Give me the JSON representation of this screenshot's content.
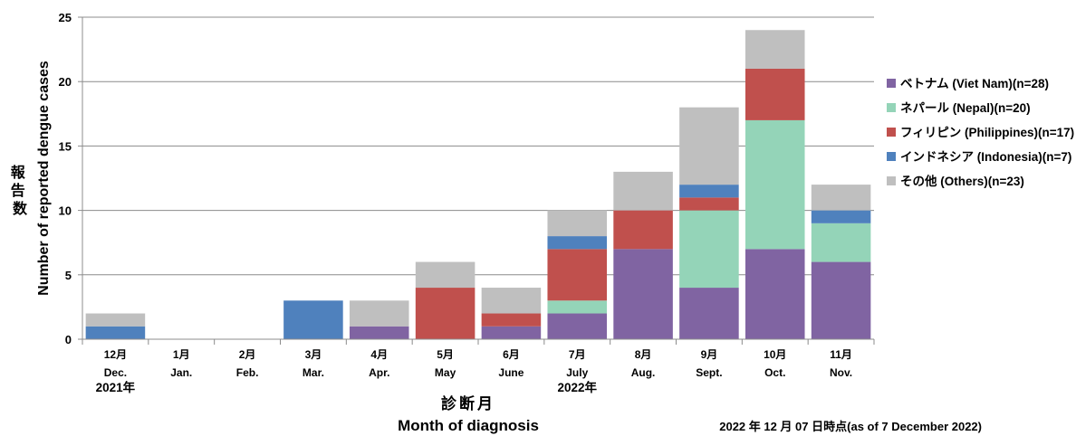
{
  "chart_data": {
    "type": "bar",
    "stacked": true,
    "categories": [
      {
        "month": "12月",
        "en": "Dec."
      },
      {
        "month": "1月",
        "en": "Jan."
      },
      {
        "month": "2月",
        "en": "Feb."
      },
      {
        "month": "3月",
        "en": "Mar."
      },
      {
        "month": "4月",
        "en": "Apr."
      },
      {
        "month": "5月",
        "en": "May"
      },
      {
        "month": "6月",
        "en": "June"
      },
      {
        "month": "7月",
        "en": "July"
      },
      {
        "month": "8月",
        "en": "Aug."
      },
      {
        "month": "9月",
        "en": "Sept."
      },
      {
        "month": "10月",
        "en": "Oct."
      },
      {
        "month": "11月",
        "en": "Nov."
      }
    ],
    "year_labels": [
      {
        "text": "2021年",
        "category_index": 0
      },
      {
        "text": "2022年",
        "category_index": 7
      }
    ],
    "series": [
      {
        "name": "ベトナム (Viet Nam)(n=28)",
        "color": "#8064a2",
        "values": [
          0,
          0,
          0,
          0,
          1,
          0,
          1,
          2,
          7,
          4,
          7,
          6
        ]
      },
      {
        "name": "ネパール (Nepal)(n=20)",
        "color": "#94d4b8",
        "values": [
          0,
          0,
          0,
          0,
          0,
          0,
          0,
          1,
          0,
          6,
          10,
          3
        ]
      },
      {
        "name": "フィリピン (Philippines)(n=17)",
        "color": "#c0504d",
        "values": [
          0,
          0,
          0,
          0,
          0,
          4,
          1,
          4,
          3,
          1,
          4,
          0
        ]
      },
      {
        "name": "インドネシア (Indonesia)(n=7)",
        "color": "#4f81bd",
        "values": [
          1,
          0,
          0,
          3,
          0,
          0,
          0,
          1,
          0,
          1,
          0,
          1
        ]
      },
      {
        "name": "その他 (Others)(n=23)",
        "color": "#bfbfbf",
        "values": [
          1,
          0,
          0,
          0,
          2,
          2,
          2,
          2,
          3,
          6,
          3,
          2
        ]
      }
    ],
    "ylim": [
      0,
      25
    ],
    "yticks": [
      0,
      5,
      10,
      15,
      20,
      25
    ],
    "ylabel_ja": "報告数",
    "ylabel_en": "Number of reported dengue cases",
    "xlabel_ja": "診断月",
    "xlabel_en": "Month of diagnosis",
    "note": "2022 年 12 月 07 日時点(as of 7 December 2022)",
    "grid": true,
    "legend_position": "right"
  }
}
